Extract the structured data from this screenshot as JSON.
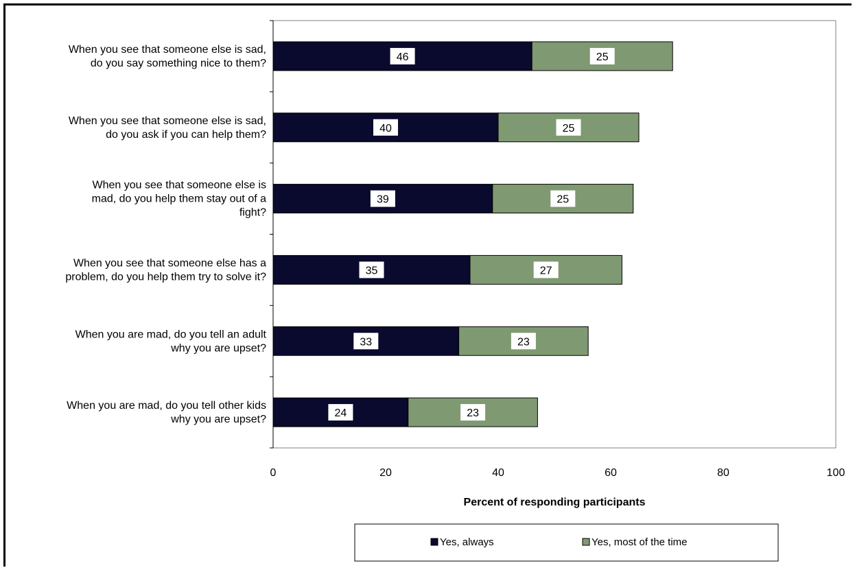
{
  "chart_data": {
    "type": "bar",
    "orientation": "horizontal",
    "stacked": true,
    "categories": [
      [
        "When you see that someone else is sad,",
        "do you say something nice to them?"
      ],
      [
        "When you see that someone else is sad,",
        "do you ask if you can help them?"
      ],
      [
        "When you see that someone else is",
        "mad, do you help them stay out of a",
        "fight?"
      ],
      [
        "When you see that someone else has a",
        "problem, do you help them try to solve it?"
      ],
      [
        "When you are mad, do you tell an adult",
        "why you are upset?"
      ],
      [
        "When you are mad, do you tell other kids",
        "why you are upset?"
      ]
    ],
    "series": [
      {
        "name": "Yes, always",
        "color": "#0a0a2e",
        "values": [
          46,
          40,
          39,
          35,
          33,
          24
        ]
      },
      {
        "name": "Yes, most of the time",
        "color": "#7f9a72",
        "values": [
          25,
          25,
          25,
          27,
          23,
          23
        ]
      }
    ],
    "xlabel": "Percent of responding participants",
    "xlim": [
      0,
      100
    ],
    "xticks": [
      0,
      20,
      40,
      60,
      80,
      100
    ],
    "data_labels": true,
    "grid": false,
    "legend_position": "bottom"
  }
}
